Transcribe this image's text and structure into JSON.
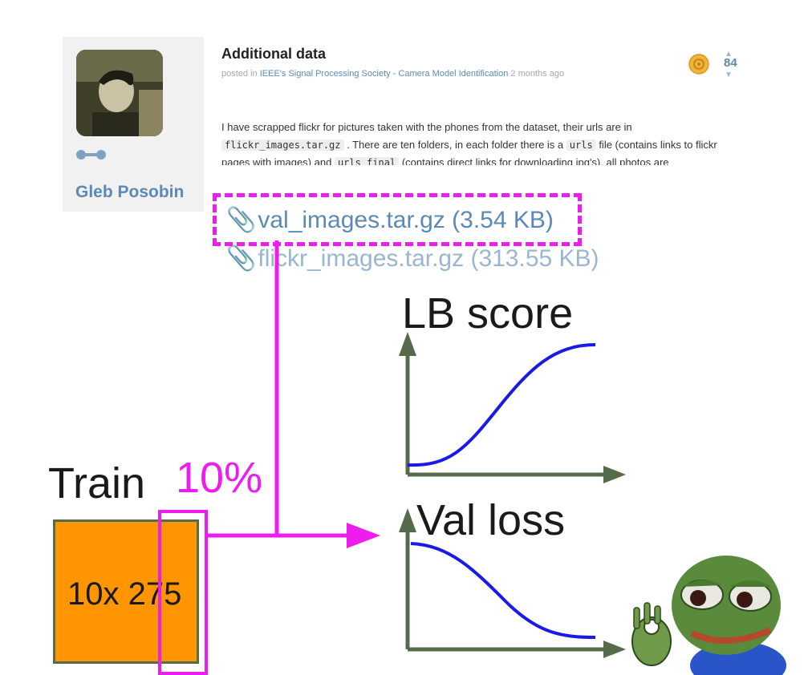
{
  "post": {
    "title": "Additional data",
    "meta_prefix": "posted in",
    "competition": "IEEE's Signal Processing Society - Camera Model Identification",
    "time_ago": "2 months ago",
    "votes": "84",
    "author": "Gleb Posobin",
    "body_1": "I have scrapped flickr for pictures taken with the phones from the dataset, their urls are in",
    "code_1": "flickr_images.tar.gz",
    "body_2": ". There are ten folders, in each folder there is a",
    "code_2": "urls",
    "body_3": "file (contains links to flickr pages with images) and",
    "code_3": "urls_final",
    "body_4": "(contains direct links for downloading jpg's), all photos are"
  },
  "attachments": [
    {
      "name": "val_images.tar.gz (3.54 KB)"
    },
    {
      "name": "flickr_images.tar.gz (313.55 KB)"
    }
  ],
  "diagram": {
    "lb_title": "LB score",
    "val_title": "Val loss",
    "train_title": "Train",
    "split_label": "10%",
    "train_count": "10x 275"
  },
  "icons": {
    "medal": "gold-medal-icon",
    "attachment": "paperclip-icon",
    "avatar_badge": "badge-icon",
    "frog": "frog-ok-hand-icon"
  },
  "colors": {
    "highlight": "#ee1cee",
    "train_fill": "#ff9500",
    "curve": "#1a1ae6",
    "axis": "#556b4c",
    "link": "#5b8ab6"
  }
}
